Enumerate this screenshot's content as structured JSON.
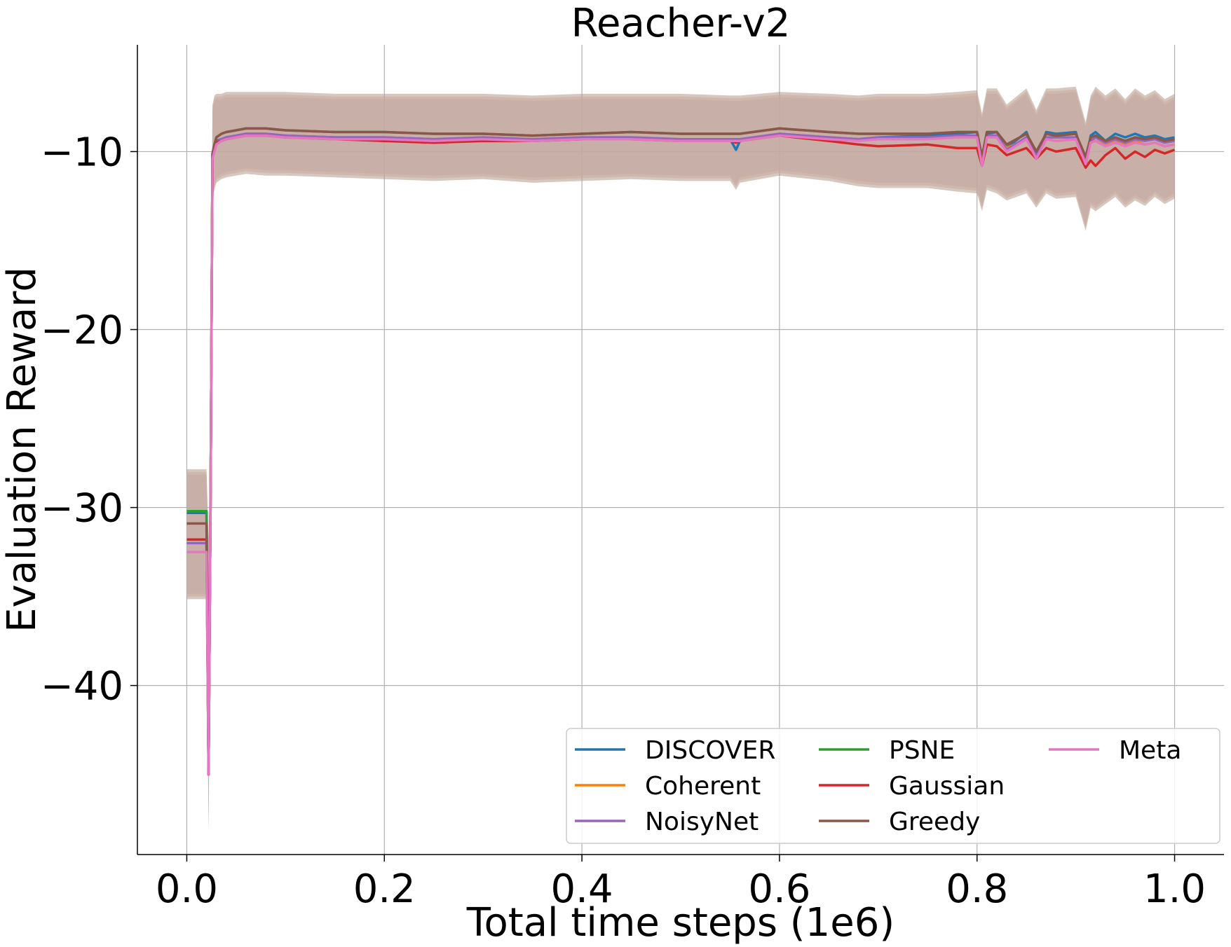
{
  "chart_data": {
    "type": "line",
    "title": "Reacher-v2",
    "xlabel": "Total time steps (1e6)",
    "ylabel": "Evaluation Reward",
    "xlim": [
      -0.05,
      1.05
    ],
    "ylim": [
      -49.5,
      -4.0
    ],
    "xticks": [
      0.0,
      0.2,
      0.4,
      0.6,
      0.8,
      1.0
    ],
    "xtick_labels": [
      "0.0",
      "0.2",
      "0.4",
      "0.6",
      "0.8",
      "1.0"
    ],
    "yticks": [
      -40,
      -30,
      -20,
      -10
    ],
    "ytick_labels": [
      "−40",
      "−30",
      "−20",
      "−10"
    ],
    "grid": true,
    "legend": {
      "location": "lower-right",
      "columns": 3
    },
    "x": [
      0.0,
      0.02,
      0.022,
      0.024,
      0.026,
      0.028,
      0.03,
      0.035,
      0.04,
      0.05,
      0.06,
      0.08,
      0.1,
      0.15,
      0.2,
      0.25,
      0.3,
      0.35,
      0.4,
      0.45,
      0.5,
      0.55,
      0.556,
      0.56,
      0.6,
      0.65,
      0.68,
      0.7,
      0.75,
      0.78,
      0.8,
      0.805,
      0.81,
      0.82,
      0.83,
      0.85,
      0.86,
      0.87,
      0.88,
      0.9,
      0.91,
      0.915,
      0.92,
      0.93,
      0.94,
      0.95,
      0.96,
      0.97,
      0.98,
      0.99,
      1.0
    ],
    "series": [
      {
        "name": "DISCOVER",
        "color": "#1f77b4",
        "values": [
          -30.3,
          -30.3,
          -45.0,
          -30.0,
          -10.2,
          -9.8,
          -9.4,
          -9.3,
          -9.2,
          -9.1,
          -9.0,
          -9.1,
          -9.1,
          -9.2,
          -9.2,
          -9.3,
          -9.3,
          -9.4,
          -9.3,
          -9.3,
          -9.3,
          -9.3,
          -9.9,
          -9.4,
          -9.0,
          -9.2,
          -9.3,
          -9.2,
          -9.1,
          -9.0,
          -8.9,
          -10.5,
          -9.0,
          -8.9,
          -9.8,
          -8.9,
          -10.3,
          -8.9,
          -9.0,
          -8.9,
          -10.8,
          -9.1,
          -8.9,
          -9.4,
          -9.0,
          -9.2,
          -9.0,
          -9.2,
          -9.1,
          -9.3,
          -9.2
        ]
      },
      {
        "name": "Coherent",
        "color": "#ff7f0e",
        "values": [
          -31.8,
          -31.8,
          -45.0,
          -30.0,
          -10.3,
          -9.9,
          -9.5,
          -9.3,
          -9.2,
          -9.1,
          -9.0,
          -9.0,
          -9.1,
          -9.2,
          -9.2,
          -9.3,
          -9.2,
          -9.3,
          -9.2,
          -9.2,
          -9.3,
          -9.3,
          -9.3,
          -9.3,
          -9.0,
          -9.2,
          -9.3,
          -9.3,
          -9.2,
          -9.2,
          -9.2,
          -10.7,
          -9.2,
          -9.2,
          -9.8,
          -9.3,
          -10.1,
          -9.3,
          -9.4,
          -9.3,
          -10.5,
          -9.5,
          -9.4,
          -9.6,
          -9.4,
          -9.6,
          -9.4,
          -9.6,
          -9.5,
          -9.7,
          -9.6
        ]
      },
      {
        "name": "NoisyNet",
        "color": "#9467bd",
        "values": [
          -32.0,
          -32.0,
          -45.0,
          -30.0,
          -10.3,
          -9.9,
          -9.5,
          -9.3,
          -9.2,
          -9.1,
          -9.0,
          -9.0,
          -9.1,
          -9.2,
          -9.2,
          -9.3,
          -9.2,
          -9.3,
          -9.2,
          -9.2,
          -9.3,
          -9.3,
          -9.3,
          -9.3,
          -9.0,
          -9.2,
          -9.3,
          -9.2,
          -9.2,
          -9.1,
          -9.1,
          -10.6,
          -9.1,
          -9.1,
          -9.9,
          -9.2,
          -10.2,
          -9.2,
          -9.2,
          -9.2,
          -10.6,
          -9.4,
          -9.2,
          -9.5,
          -9.3,
          -9.5,
          -9.3,
          -9.4,
          -9.3,
          -9.5,
          -9.4
        ]
      },
      {
        "name": "PSNE",
        "color": "#2ca02c",
        "values": [
          -30.2,
          -30.2,
          -45.0,
          -30.0,
          -10.1,
          -9.6,
          -9.2,
          -9.0,
          -8.9,
          -8.8,
          -8.7,
          -8.7,
          -8.8,
          -8.9,
          -8.9,
          -9.0,
          -9.0,
          -9.1,
          -9.0,
          -8.9,
          -9.0,
          -9.0,
          -9.0,
          -9.0,
          -8.7,
          -8.9,
          -9.0,
          -9.0,
          -9.0,
          -8.9,
          -8.9,
          -10.3,
          -8.9,
          -8.9,
          -9.6,
          -9.0,
          -10.0,
          -9.0,
          -9.1,
          -9.0,
          -10.3,
          -9.2,
          -9.1,
          -9.4,
          -9.2,
          -9.4,
          -9.2,
          -9.3,
          -9.2,
          -9.4,
          -9.3
        ]
      },
      {
        "name": "Gaussian",
        "color": "#d62728",
        "values": [
          -31.8,
          -31.8,
          -45.0,
          -30.0,
          -10.3,
          -9.9,
          -9.5,
          -9.4,
          -9.3,
          -9.2,
          -9.1,
          -9.1,
          -9.2,
          -9.3,
          -9.4,
          -9.5,
          -9.4,
          -9.4,
          -9.3,
          -9.3,
          -9.4,
          -9.4,
          -9.5,
          -9.4,
          -9.1,
          -9.4,
          -9.6,
          -9.7,
          -9.6,
          -9.8,
          -9.8,
          -10.8,
          -9.6,
          -9.7,
          -10.2,
          -9.8,
          -10.4,
          -9.8,
          -10.0,
          -9.8,
          -10.9,
          -10.5,
          -10.8,
          -10.2,
          -9.8,
          -10.4,
          -10.0,
          -10.3,
          -9.9,
          -10.1,
          -9.9
        ]
      },
      {
        "name": "Greedy",
        "color": "#8c564b",
        "values": [
          -30.9,
          -30.9,
          -45.0,
          -30.0,
          -10.1,
          -9.6,
          -9.2,
          -9.0,
          -8.9,
          -8.8,
          -8.7,
          -8.7,
          -8.8,
          -8.9,
          -8.9,
          -9.0,
          -9.0,
          -9.1,
          -9.0,
          -8.9,
          -9.0,
          -9.0,
          -9.0,
          -9.0,
          -8.7,
          -8.9,
          -9.0,
          -9.0,
          -9.0,
          -8.9,
          -8.9,
          -10.3,
          -8.9,
          -8.9,
          -9.6,
          -9.0,
          -10.0,
          -9.0,
          -9.1,
          -9.0,
          -10.3,
          -9.2,
          -9.1,
          -9.4,
          -9.2,
          -9.4,
          -9.2,
          -9.3,
          -9.2,
          -9.4,
          -9.3
        ]
      },
      {
        "name": "Meta",
        "color": "#e377c2",
        "values": [
          -32.5,
          -32.5,
          -45.0,
          -30.0,
          -10.4,
          -10.0,
          -9.6,
          -9.4,
          -9.3,
          -9.2,
          -9.1,
          -9.1,
          -9.2,
          -9.3,
          -9.3,
          -9.4,
          -9.3,
          -9.4,
          -9.3,
          -9.3,
          -9.4,
          -9.4,
          -9.4,
          -9.4,
          -9.1,
          -9.3,
          -9.4,
          -9.3,
          -9.3,
          -9.2,
          -9.2,
          -10.8,
          -9.2,
          -9.2,
          -10.0,
          -9.3,
          -10.4,
          -9.3,
          -9.4,
          -9.3,
          -10.7,
          -9.5,
          -9.4,
          -9.7,
          -9.5,
          -9.7,
          -9.5,
          -9.6,
          -9.5,
          -9.7,
          -9.6
        ]
      }
    ],
    "band": {
      "fill_colors": [
        "#aec7e8",
        "#f4b8a8",
        "#b09a8e"
      ],
      "upper": [
        -28.0,
        -28.0,
        -32.0,
        -25.0,
        -7.5,
        -7.0,
        -6.9,
        -6.9,
        -6.8,
        -6.8,
        -6.8,
        -6.8,
        -6.8,
        -6.9,
        -6.9,
        -6.9,
        -6.9,
        -7.0,
        -6.9,
        -6.9,
        -6.9,
        -7.0,
        -7.0,
        -7.0,
        -6.8,
        -6.9,
        -7.0,
        -6.9,
        -6.9,
        -6.8,
        -6.7,
        -8.0,
        -6.6,
        -6.6,
        -7.5,
        -6.6,
        -7.8,
        -6.6,
        -6.6,
        -6.5,
        -8.5,
        -7.0,
        -6.5,
        -7.0,
        -6.6,
        -7.2,
        -6.6,
        -7.0,
        -6.7,
        -7.2,
        -6.9
      ],
      "lower": [
        -35.0,
        -35.0,
        -48.0,
        -36.0,
        -12.3,
        -12.0,
        -11.6,
        -11.4,
        -11.3,
        -11.2,
        -11.1,
        -11.2,
        -11.2,
        -11.3,
        -11.4,
        -11.5,
        -11.4,
        -11.6,
        -11.5,
        -11.4,
        -11.5,
        -11.5,
        -12.0,
        -11.6,
        -11.2,
        -11.5,
        -11.8,
        -11.9,
        -11.9,
        -12.1,
        -12.2,
        -13.2,
        -12.0,
        -12.2,
        -12.6,
        -12.2,
        -13.0,
        -12.2,
        -12.5,
        -12.4,
        -14.3,
        -13.0,
        -13.2,
        -12.8,
        -12.4,
        -13.0,
        -12.6,
        -12.9,
        -12.4,
        -12.8,
        -12.5
      ]
    }
  }
}
